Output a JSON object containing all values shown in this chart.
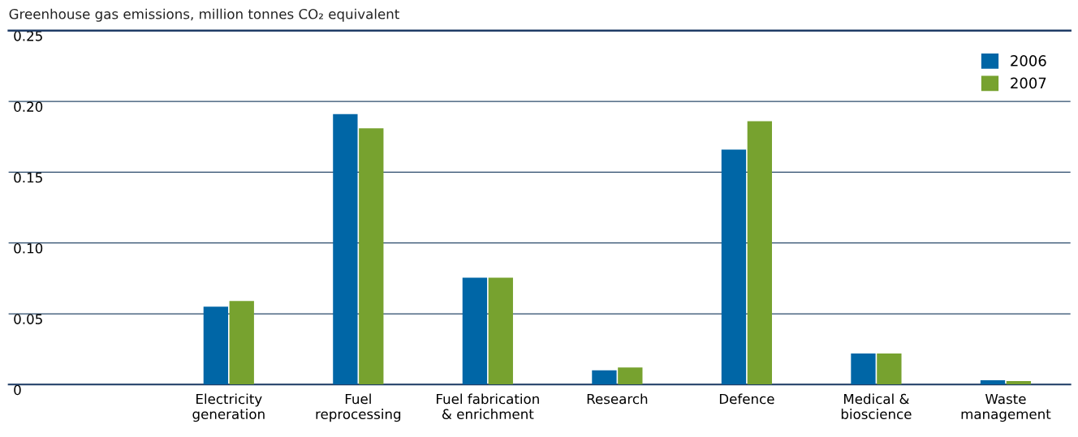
{
  "chart_data": {
    "type": "bar",
    "ylabel": "Greenhouse gas emissions, million tonnes CO₂ equivalent",
    "categories": [
      "Electricity\ngeneration",
      "Fuel\nreprocessing",
      "Fuel fabrication\n& enrichment",
      "Research",
      "Defence",
      "Medical &\nbioscience",
      "Waste\nmanagement"
    ],
    "series": [
      {
        "name": "2006",
        "color": "#0066a6",
        "values": [
          0.055,
          0.191,
          0.0755,
          0.01,
          0.166,
          0.022,
          0.003
        ]
      },
      {
        "name": "2007",
        "color": "#77a22f",
        "values": [
          0.059,
          0.181,
          0.0755,
          0.012,
          0.186,
          0.022,
          0.0025
        ]
      }
    ],
    "ylim": [
      0,
      0.25
    ],
    "yticks": [
      0,
      0.05,
      {
        "value": 0.1,
        "label": "0.10"
      },
      0.15,
      {
        "value": 0.2,
        "label": "0.20"
      },
      0.25
    ],
    "grid": "y",
    "legend": "top right"
  }
}
